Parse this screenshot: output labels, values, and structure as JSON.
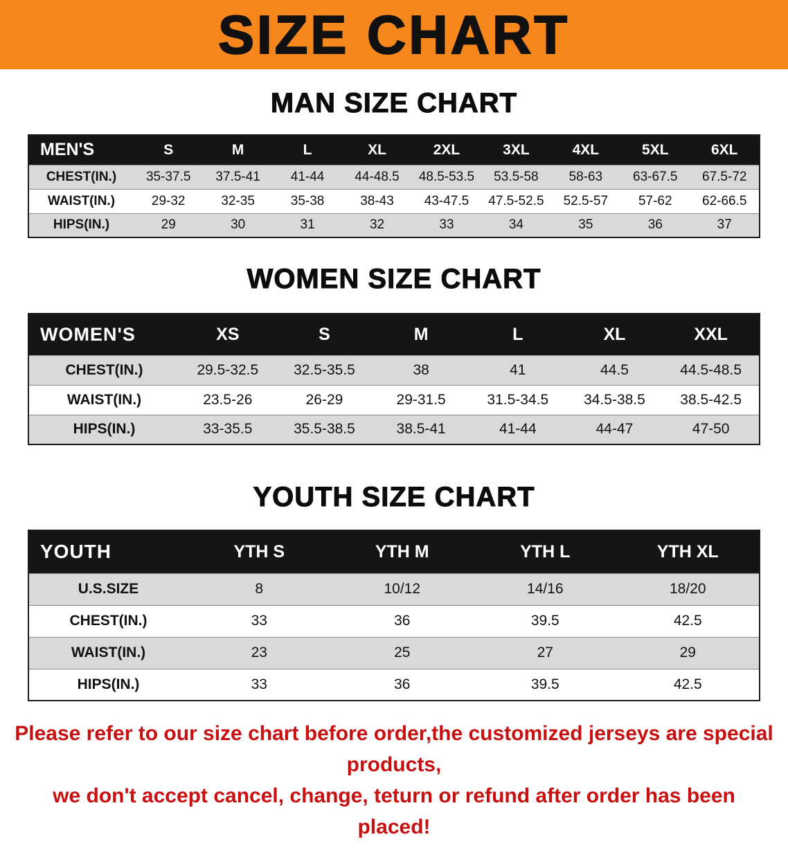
{
  "banner": {
    "title": "SIZE CHART"
  },
  "tables": [
    {
      "id": "men",
      "heading": "MAN SIZE CHART",
      "header": [
        "MEN'S",
        "S",
        "M",
        "L",
        "XL",
        "2XL",
        "3XL",
        "4XL",
        "5XL",
        "6XL"
      ],
      "rows": [
        [
          "CHEST(IN.)",
          "35-37.5",
          "37.5-41",
          "41-44",
          "44-48.5",
          "48.5-53.5",
          "53.5-58",
          "58-63",
          "63-67.5",
          "67.5-72"
        ],
        [
          "WAIST(IN.)",
          "29-32",
          "32-35",
          "35-38",
          "38-43",
          "43-47.5",
          "47.5-52.5",
          "52.5-57",
          "57-62",
          "62-66.5"
        ],
        [
          "HIPS(IN.)",
          "29",
          "30",
          "31",
          "32",
          "33",
          "34",
          "35",
          "36",
          "37"
        ]
      ]
    },
    {
      "id": "women",
      "heading": "WOMEN SIZE CHART",
      "header": [
        "WOMEN'S",
        "XS",
        "S",
        "M",
        "L",
        "XL",
        "XXL"
      ],
      "rows": [
        [
          "CHEST(IN.)",
          "29.5-32.5",
          "32.5-35.5",
          "38",
          "41",
          "44.5",
          "44.5-48.5"
        ],
        [
          "WAIST(IN.)",
          "23.5-26",
          "26-29",
          "29-31.5",
          "31.5-34.5",
          "34.5-38.5",
          "38.5-42.5"
        ],
        [
          "HIPS(IN.)",
          "33-35.5",
          "35.5-38.5",
          "38.5-41",
          "41-44",
          "44-47",
          "47-50"
        ]
      ]
    },
    {
      "id": "youth",
      "heading": "YOUTH SIZE CHART",
      "header": [
        "YOUTH",
        "YTH S",
        "YTH M",
        "YTH L",
        "YTH XL"
      ],
      "rows": [
        [
          "U.S.SIZE",
          "8",
          "10/12",
          "14/16",
          "18/20"
        ],
        [
          "CHEST(IN.)",
          "33",
          "36",
          "39.5",
          "42.5"
        ],
        [
          "WAIST(IN.)",
          "23",
          "25",
          "27",
          "29"
        ],
        [
          "HIPS(IN.)",
          "33",
          "36",
          "39.5",
          "42.5"
        ]
      ]
    }
  ],
  "disclaimer": {
    "lines": [
      "Please refer to our size chart before order,the customized jerseys are special products,",
      "we don't accept cancel, change, teturn or refund after order has been placed!"
    ]
  },
  "colors": {
    "banner_bg": "#F6871D",
    "banner_text": "#111111",
    "table_header_bg": "#151515",
    "table_header_text": "#FFFFFF",
    "row_alt_bg": "#D9D9D9",
    "row_bg": "#FFFFFF",
    "disclaimer_text": "#C81010"
  }
}
